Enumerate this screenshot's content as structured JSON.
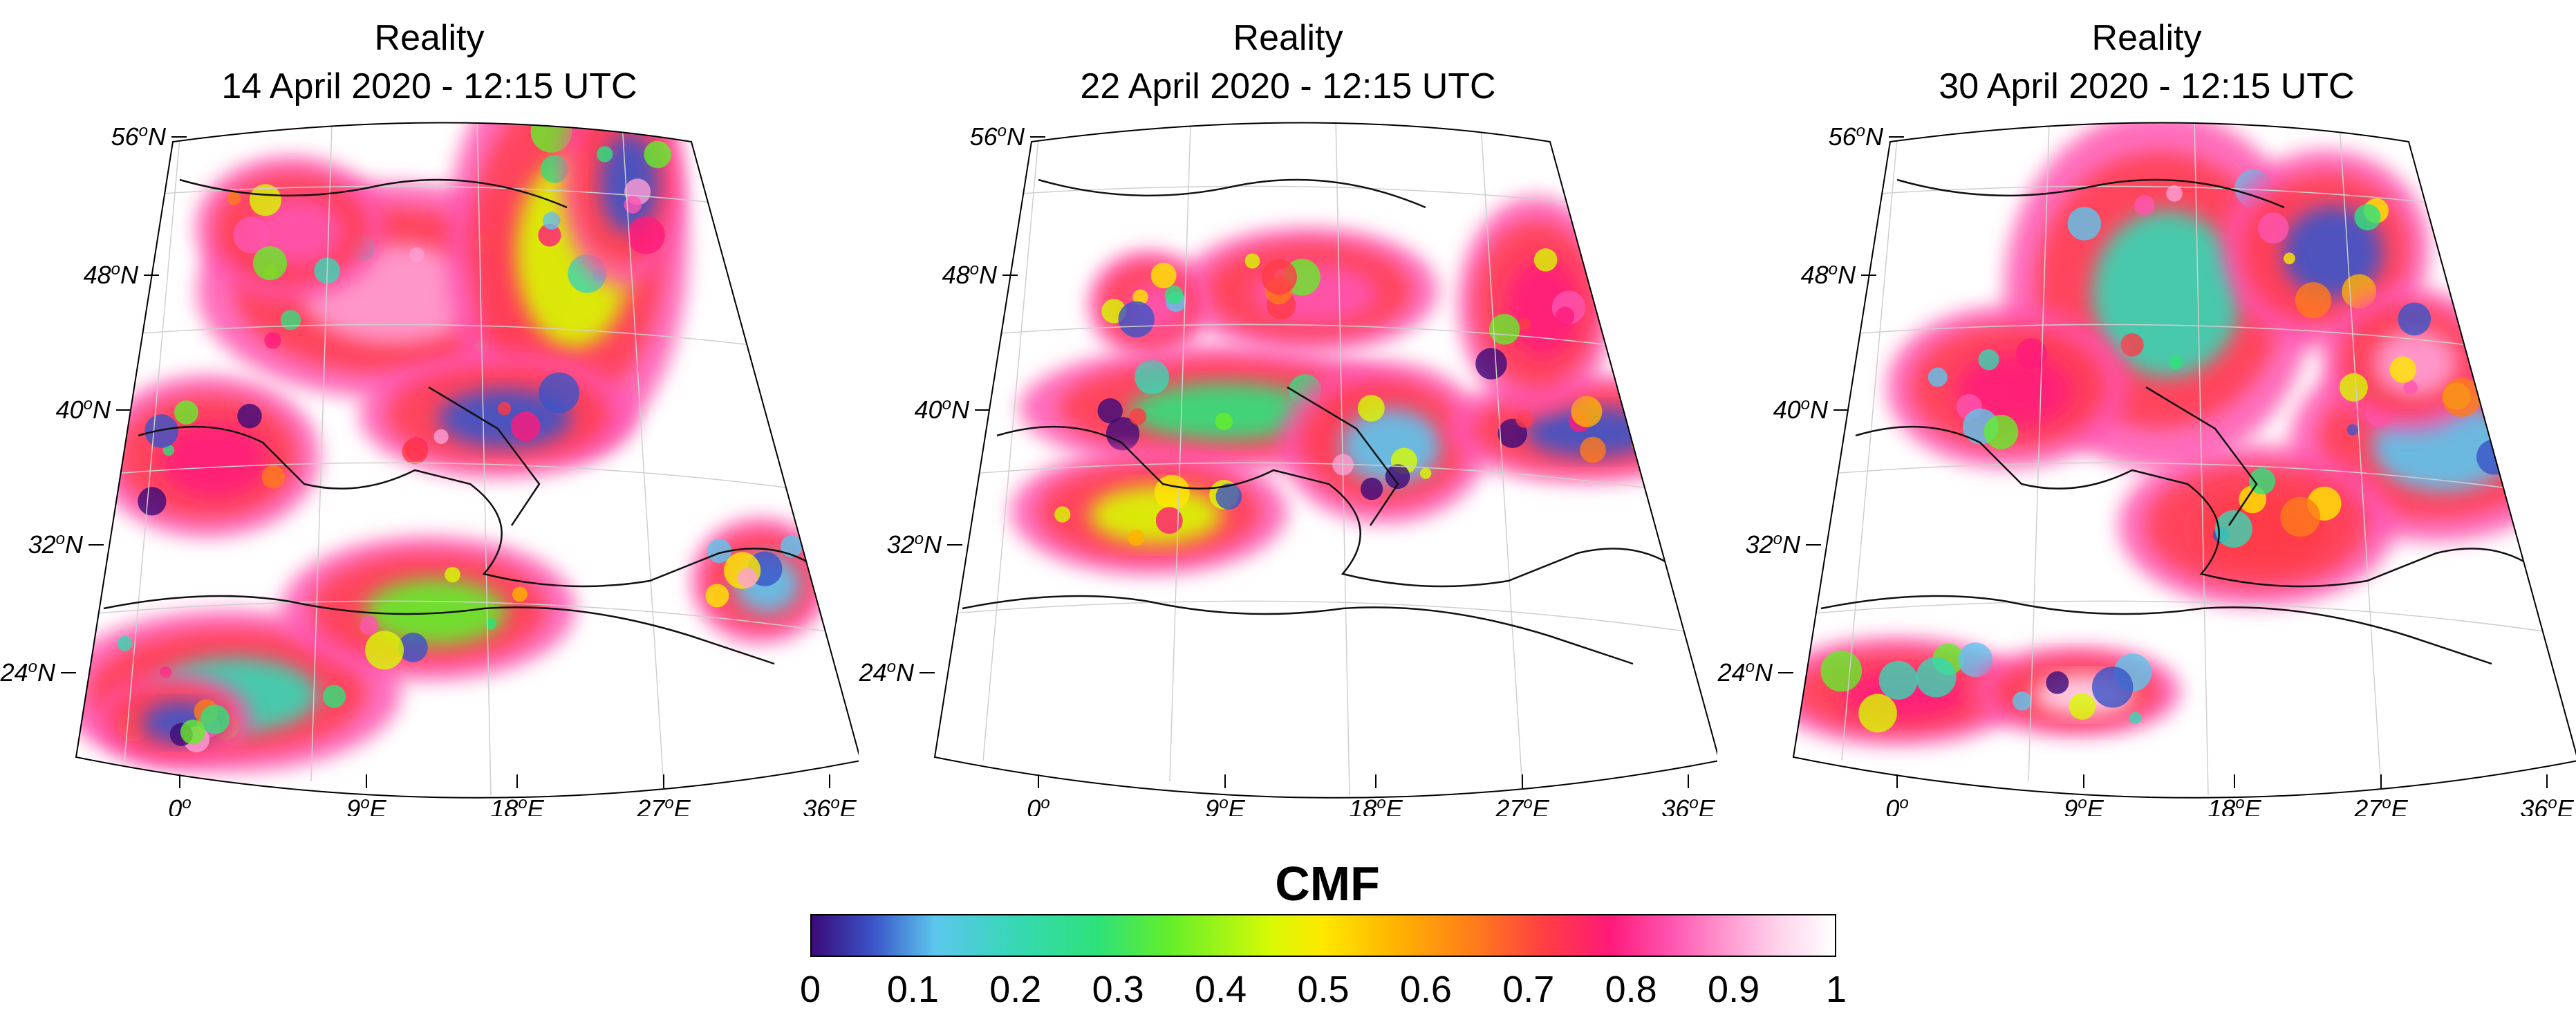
{
  "panels": [
    {
      "title": "Reality",
      "date": "14 April 2020 - 12:15 UTC"
    },
    {
      "title": "Reality",
      "date": "22 April 2020 - 12:15 UTC"
    },
    {
      "title": "Reality",
      "date": "30 April 2020 - 12:15 UTC"
    }
  ],
  "lat_labels": [
    "56",
    "48",
    "40",
    "32",
    "24"
  ],
  "lat_suffix": "N",
  "lon_labels": [
    "0",
    "9",
    "18",
    "27",
    "36"
  ],
  "lon_suffix": "E",
  "degree_mark": "o",
  "colorbar": {
    "title": "CMF",
    "ticks": [
      "0",
      "0.1",
      "0.2",
      "0.3",
      "0.4",
      "0.5",
      "0.6",
      "0.7",
      "0.8",
      "0.9",
      "1"
    ],
    "range": [
      0,
      1
    ],
    "colors": [
      "#3b0a78",
      "#3a54c8",
      "#5cc6ee",
      "#36d8b4",
      "#2ee27a",
      "#64ee2a",
      "#d8fa04",
      "#ffe800",
      "#ffb400",
      "#ff7a1c",
      "#ff3b46",
      "#ff1a7a",
      "#ff55b0",
      "#ff9fd4",
      "#ffd8ee",
      "#ffffff"
    ]
  }
}
